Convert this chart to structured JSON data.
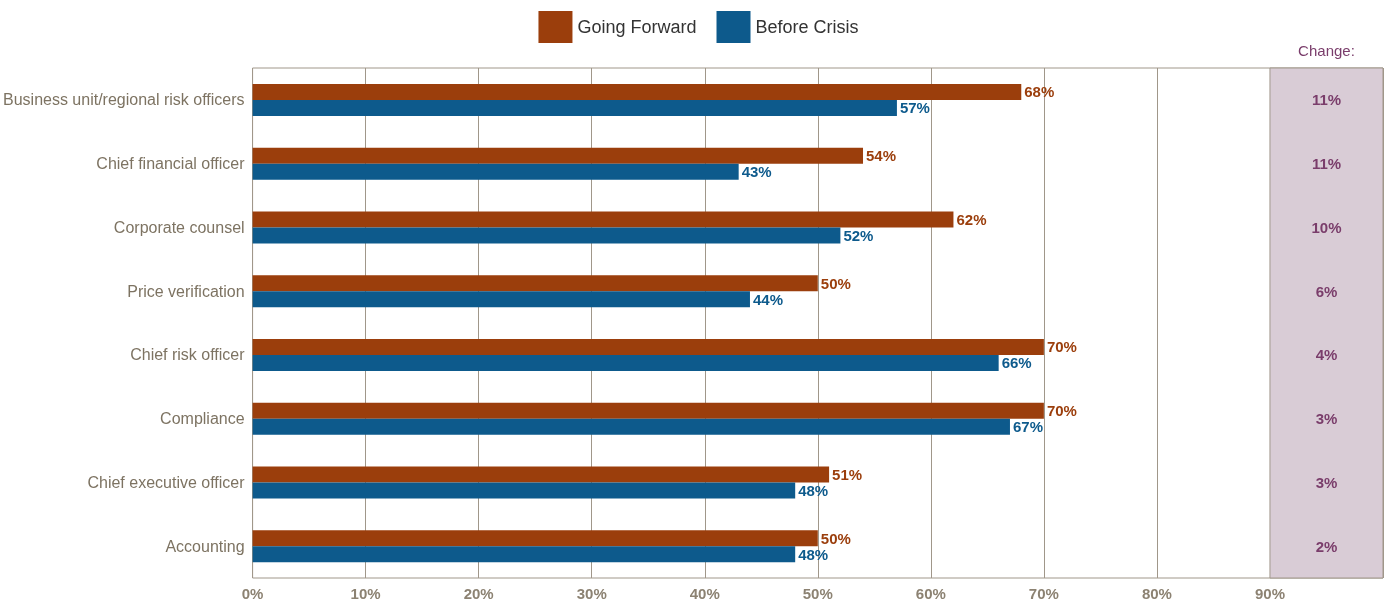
{
  "chart_data": {
    "type": "bar",
    "orientation": "horizontal",
    "categories": [
      "Business unit/regional risk officers",
      "Chief financial officer",
      "Corporate counsel",
      "Price verification",
      "Chief risk officer",
      "Compliance",
      "Chief executive officer",
      "Accounting"
    ],
    "series": [
      {
        "name": "Going Forward",
        "color": "#9b3e0c",
        "values": [
          68,
          54,
          62,
          50,
          70,
          70,
          51,
          50
        ],
        "value_labels": [
          "68%",
          "54%",
          "62%",
          "50%",
          "70%",
          "70%",
          "51%",
          "50%"
        ]
      },
      {
        "name": "Before Crisis",
        "color": "#0d5a8c",
        "values": [
          57,
          43,
          52,
          44,
          66,
          67,
          48,
          48
        ],
        "value_labels": [
          "57%",
          "43%",
          "52%",
          "44%",
          "66%",
          "67%",
          "48%",
          "48%"
        ]
      }
    ],
    "xlim": [
      0,
      100
    ],
    "xticks": [
      {
        "value": 0,
        "label": "0%"
      },
      {
        "value": 10,
        "label": "10%"
      },
      {
        "value": 20,
        "label": "20%"
      },
      {
        "value": 30,
        "label": "30%"
      },
      {
        "value": 40,
        "label": "40%"
      },
      {
        "value": 50,
        "label": "50%"
      },
      {
        "value": 60,
        "label": "60%"
      },
      {
        "value": 70,
        "label": "70%"
      },
      {
        "value": 80,
        "label": "80%"
      },
      {
        "value": 90,
        "label": "90%"
      }
    ],
    "bands": [
      {
        "axis": "x",
        "from": 90,
        "to": 100,
        "label": "Change:",
        "color": "#d9ccd6"
      }
    ],
    "annotations": [
      "11%",
      "11%",
      "10%",
      "6%",
      "4%",
      "3%",
      "3%",
      "2%"
    ],
    "grid": "x",
    "legend": "top"
  }
}
